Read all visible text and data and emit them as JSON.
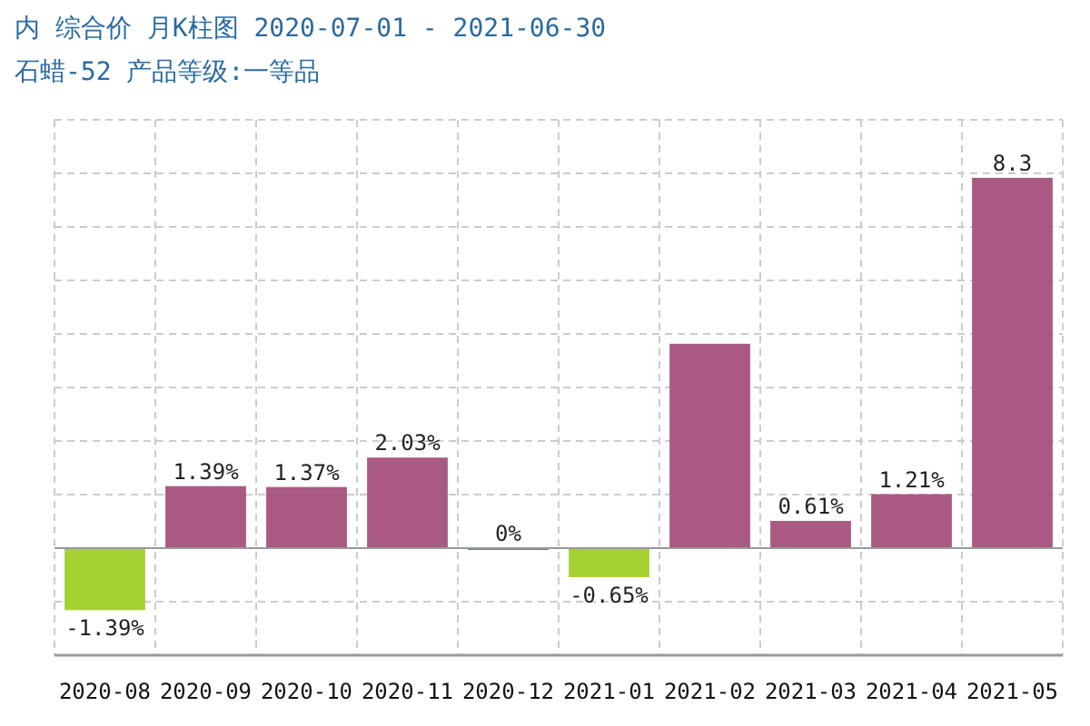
{
  "chart_data": {
    "type": "bar",
    "title": "内 综合价 月K柱图 2020-07-01 - 2021-06-30",
    "subtitle": "石蜡-52 产品等级:一等品",
    "categories": [
      "2020-08",
      "2020-09",
      "2020-10",
      "2020-11",
      "2020-12",
      "2021-01",
      "2021-02",
      "2021-03",
      "2021-04",
      "2021-05"
    ],
    "values": [
      -1.39,
      1.39,
      1.37,
      2.03,
      0,
      -0.65,
      4.58,
      0.61,
      1.21,
      8.3
    ],
    "colors": [
      "#a6d132",
      "#aa5a82",
      "#aa5a82",
      "#aa5a82",
      "#aa5a82",
      "#a6d132",
      "#aa5a82",
      "#aa5a82",
      "#aa5a82",
      "#aa5a82"
    ],
    "value_labels": [
      "-1.39%",
      "1.39%",
      "1.37%",
      "2.03%",
      "0%",
      "-0.65%",
      null,
      "0.61%",
      "1.21%",
      "8.3"
    ],
    "ylim": [
      -2.4,
      9.6
    ],
    "yticks": [
      {
        "value": -2.4,
        "label": null
      },
      {
        "value": -1.2,
        "label": null
      },
      {
        "value": 0,
        "label": null
      },
      {
        "value": 1.2,
        "label": null
      },
      {
        "value": 2.4,
        "label": null
      },
      {
        "value": 3.6,
        "label": null
      },
      {
        "value": 4.8,
        "label": null
      },
      {
        "value": 6,
        "label": null
      },
      {
        "value": 7.2,
        "label": null
      },
      {
        "value": 8.4,
        "label": null
      },
      {
        "value": 9.6,
        "label": null
      }
    ],
    "grid": true,
    "tick_labels": "x"
  }
}
